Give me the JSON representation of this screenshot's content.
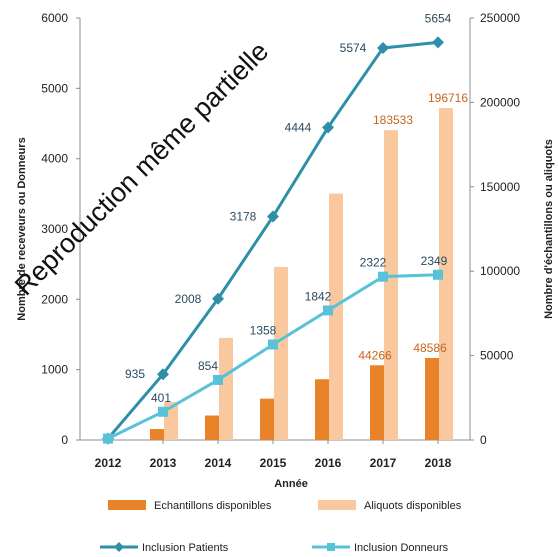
{
  "chart_data": {
    "type": "bar",
    "categories": [
      "2012",
      "2013",
      "2014",
      "2015",
      "2016",
      "2017",
      "2018"
    ],
    "xlabel": "Année",
    "ylabel_left": "Nombre de receveurs ou Donneurs",
    "ylabel_right": "Nombre d'échantillons ou aliquots",
    "ylim_left": [
      0,
      6000
    ],
    "ylim_right": [
      0,
      250000
    ],
    "yticks_left": [
      "0",
      "1000",
      "2000",
      "3000",
      "4000",
      "5000",
      "6000"
    ],
    "yticks_right": [
      "0",
      "50000",
      "100000",
      "150000",
      "200000",
      "250000"
    ],
    "grid": false,
    "legend_position": "bottom",
    "bar_series": [
      {
        "name": "Echantillons disponibles",
        "axis": "right",
        "color": "#E8832A",
        "values": [
          0,
          6500,
          14500,
          24500,
          36000,
          44266,
          48586
        ],
        "labels": [
          "",
          "",
          "",
          "",
          "",
          "44266",
          "48586"
        ]
      },
      {
        "name": "Aliquots disponibles",
        "axis": "right",
        "color": "#F9C89E",
        "values": [
          0,
          22500,
          60500,
          102500,
          146000,
          183533,
          196716
        ],
        "labels": [
          "",
          "",
          "",
          "",
          "",
          "183533",
          "196716"
        ]
      }
    ],
    "line_series": [
      {
        "name": "Inclusion Patients",
        "axis": "left",
        "color": "#2E8FA8",
        "marker": "diamond",
        "values": [
          20,
          935,
          2008,
          3178,
          4444,
          5574,
          5654
        ],
        "labels": [
          "",
          "935",
          "2008",
          "3178",
          "4444",
          "5574",
          "5654"
        ]
      },
      {
        "name": "Inclusion Donneurs",
        "axis": "left",
        "color": "#58C2D8",
        "marker": "square",
        "values": [
          20,
          401,
          854,
          1358,
          1842,
          2322,
          2349
        ],
        "labels": [
          "",
          "401",
          "854",
          "1358",
          "1842",
          "2322",
          "2349"
        ]
      }
    ],
    "label_colors": {
      "bars": "#C8641E",
      "lines": "#2C4A5E"
    }
  },
  "watermark": "Reproduction même partielle"
}
